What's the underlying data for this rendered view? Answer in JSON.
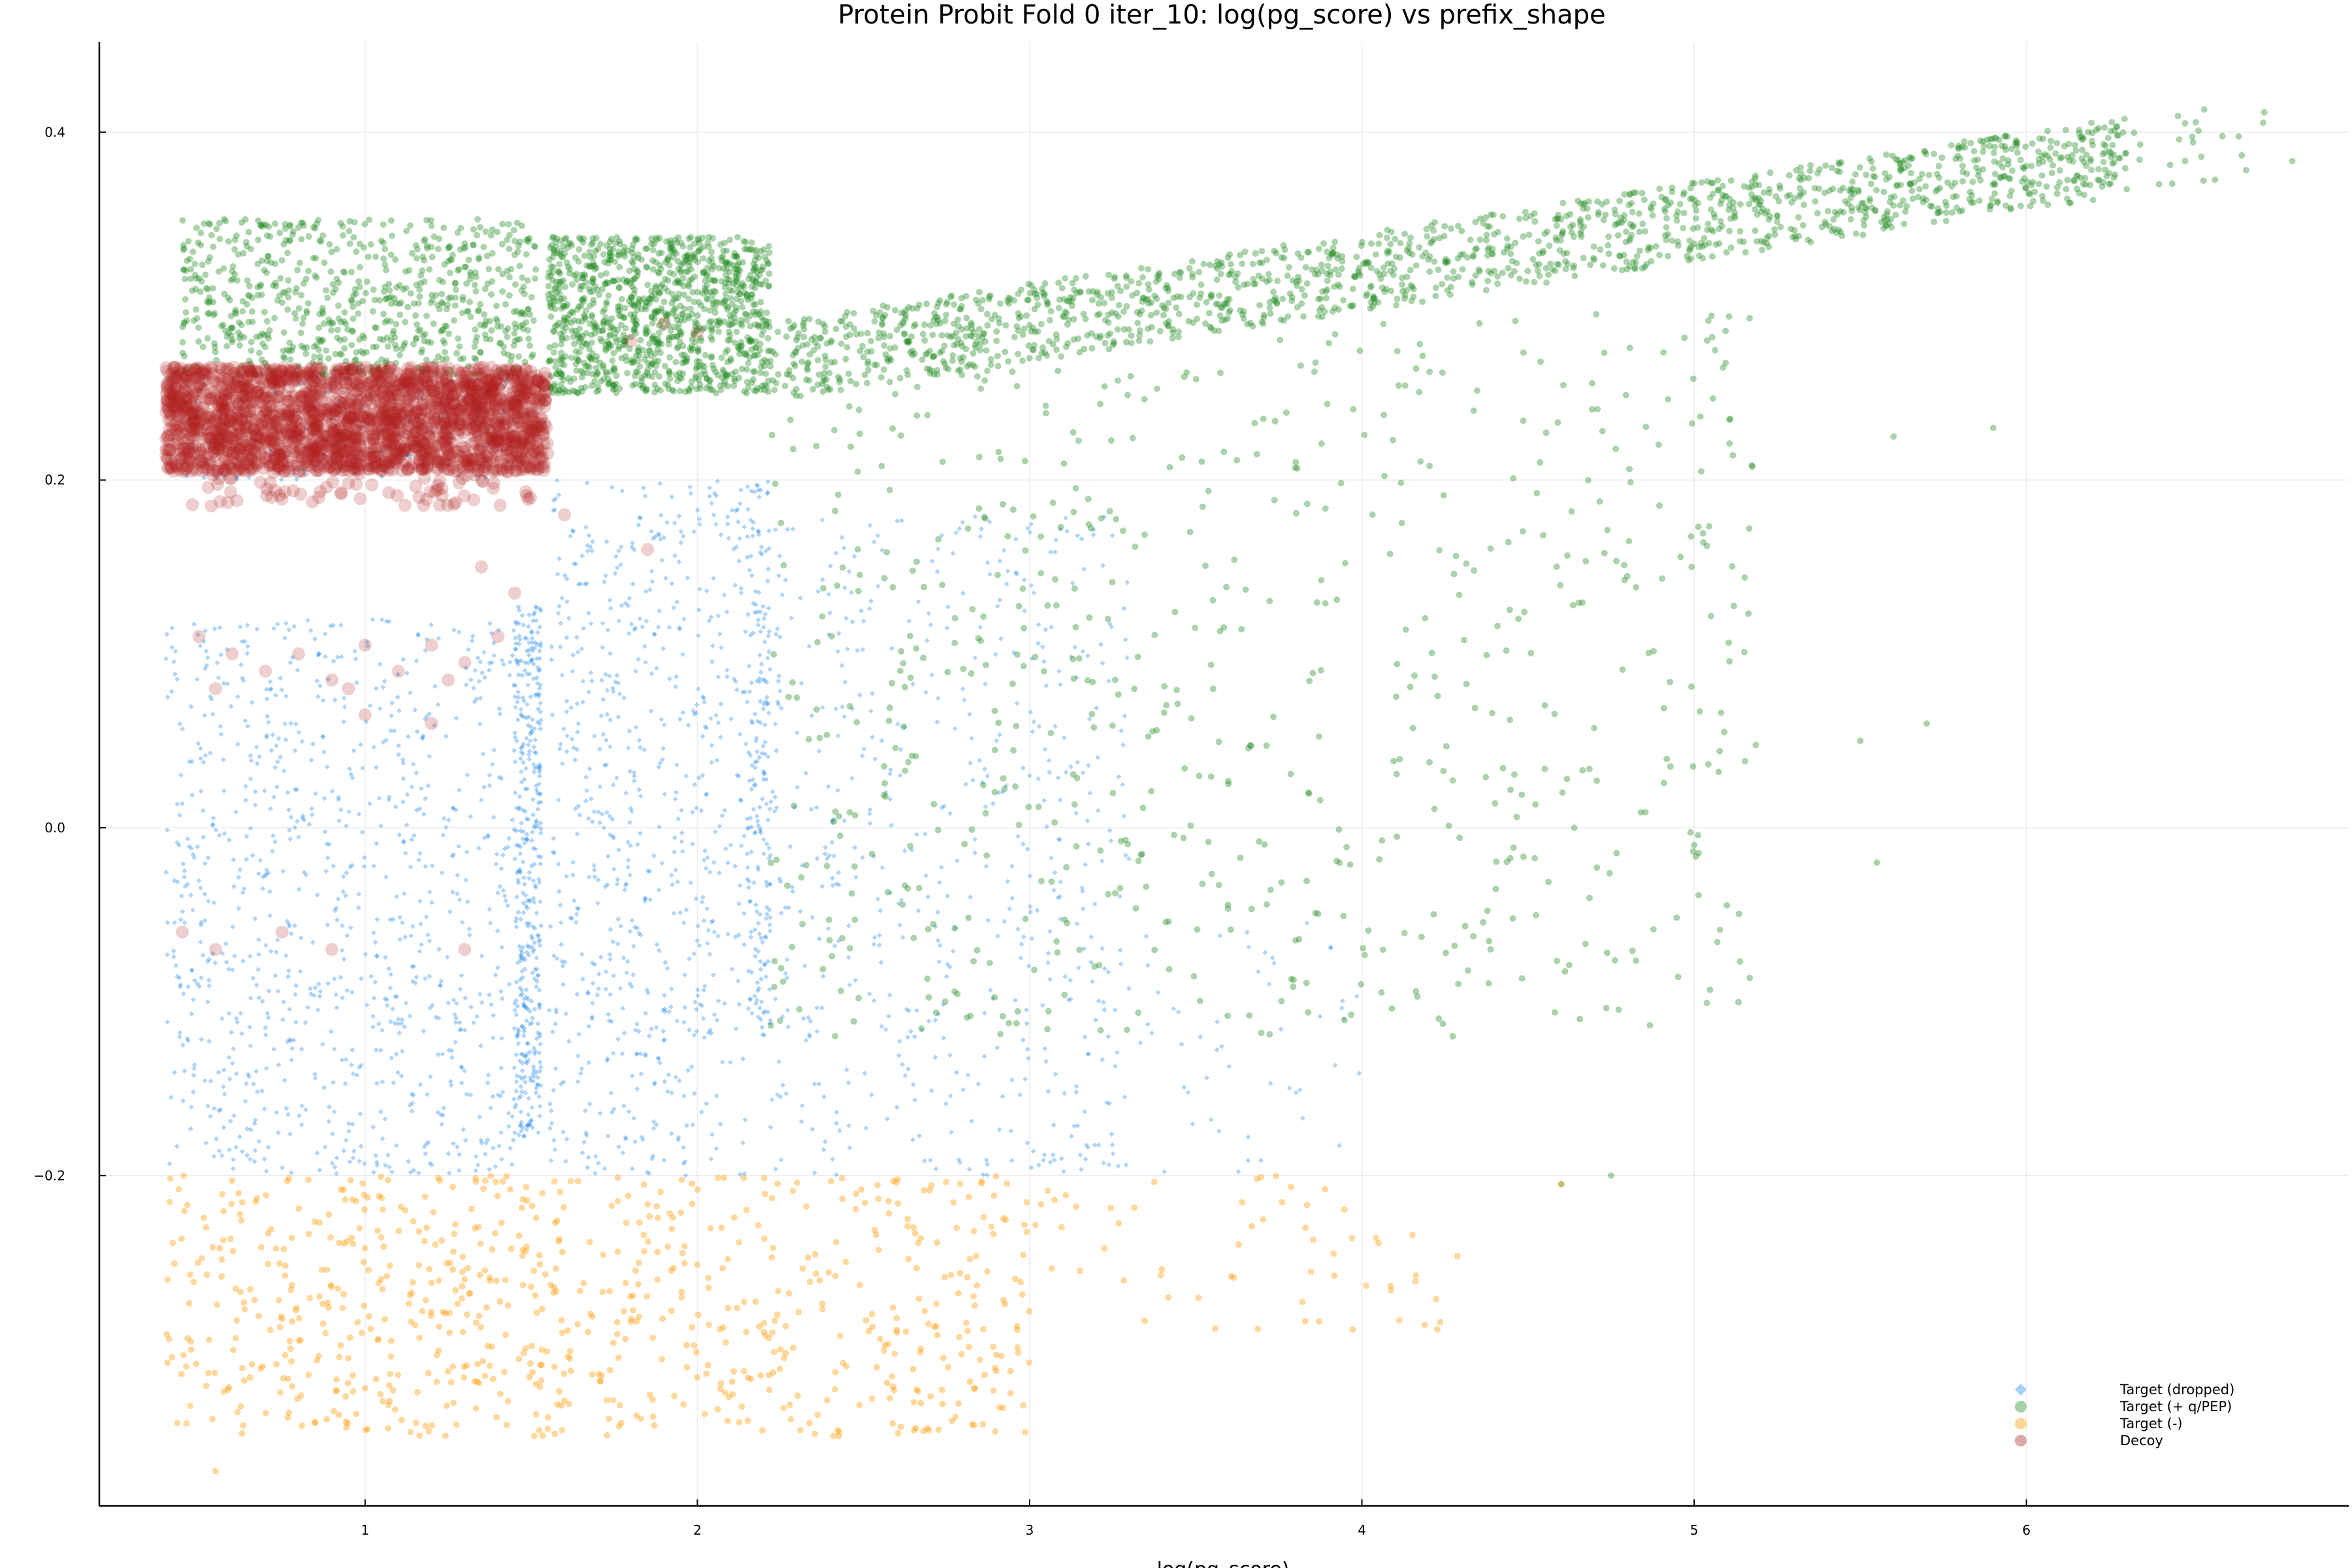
{
  "chart_data": {
    "type": "scatter",
    "title": "Protein Probit Fold 0 iter_10: log(pg_score) vs prefix_shape",
    "xlabel": "log(pg_score)",
    "ylabel": "",
    "xlim": [
      0.2,
      6.97
    ],
    "ylim": [
      -0.39,
      0.452
    ],
    "grid": true,
    "legend_position": "bottom-right",
    "x_ticks": [
      {
        "value": 1,
        "label": "1"
      },
      {
        "value": 2,
        "label": "2"
      },
      {
        "value": 3,
        "label": "3"
      },
      {
        "value": 4,
        "label": "4"
      },
      {
        "value": 5,
        "label": "5"
      },
      {
        "value": 6,
        "label": "6"
      }
    ],
    "y_ticks": [
      {
        "value": -0.2,
        "label": "−0.2"
      },
      {
        "value": 0.0,
        "label": "0.0"
      },
      {
        "value": 0.2,
        "label": "0.2"
      },
      {
        "value": 0.4,
        "label": "0.4"
      }
    ],
    "series": [
      {
        "name": "Target (dropped)",
        "color": "#1e88e5",
        "marker": "diamond",
        "clusters": [
          {
            "x": [
              0.4,
              1.45
            ],
            "y": [
              -0.2,
              0.12
            ],
            "n": 900
          },
          {
            "x": [
              1.45,
              1.53
            ],
            "y": [
              -0.18,
              0.13
            ],
            "n": 400
          },
          {
            "x": [
              1.55,
              2.15
            ],
            "y": [
              -0.2,
              0.2
            ],
            "n": 650
          },
          {
            "x": [
              2.15,
              2.22
            ],
            "y": [
              -0.12,
              0.2
            ],
            "n": 200
          },
          {
            "x": [
              2.22,
              3.3
            ],
            "y": [
              -0.2,
              0.18
            ],
            "n": 550
          },
          {
            "x": [
              3.3,
              4.0
            ],
            "y": [
              -0.2,
              -0.05
            ],
            "n": 50
          },
          {
            "x": [
              0.4,
              1.52
            ],
            "y": [
              0.2,
              0.26
            ],
            "n": 150
          }
        ],
        "points": [
          [
            2.1,
            -0.01
          ],
          [
            2.05,
            -0.02
          ],
          [
            2.15,
            -0.015
          ],
          [
            2.9,
            0.05
          ],
          [
            3.0,
            0.03
          ]
        ]
      },
      {
        "name": "Target (+ q/PEP)",
        "color": "#228b22",
        "marker": "circle",
        "clusters": [
          {
            "x": [
              0.45,
              1.52
            ],
            "y": [
              0.26,
              0.35
            ],
            "n": 700
          },
          {
            "x": [
              1.55,
              2.22
            ],
            "y": [
              0.25,
              0.34
            ],
            "n": 1100
          },
          {
            "x": [
              2.22,
              6.3
            ],
            "y": [
              0.27,
              0.41
            ],
            "n": 1500
          },
          {
            "x": [
              2.2,
              5.2
            ],
            "y": [
              -0.12,
              0.3
            ],
            "n": 700
          },
          {
            "x": [
              5.3,
              6.8
            ],
            "y": [
              0.38,
              0.43
            ],
            "n": 80
          }
        ],
        "points": [
          [
            5.6,
            0.225
          ],
          [
            5.9,
            0.23
          ],
          [
            5.7,
            0.06
          ],
          [
            5.5,
            0.05
          ],
          [
            5.55,
            -0.02
          ],
          [
            4.75,
            -0.2
          ],
          [
            4.6,
            -0.205
          ],
          [
            5.0,
            -0.01
          ]
        ]
      },
      {
        "name": "Target (-)",
        "color": "#ff9800",
        "marker": "circle",
        "clusters": [
          {
            "x": [
              0.4,
              1.55
            ],
            "y": [
              -0.35,
              -0.2
            ],
            "n": 380
          },
          {
            "x": [
              1.55,
              3.0
            ],
            "y": [
              -0.35,
              -0.2
            ],
            "n": 380
          },
          {
            "x": [
              3.0,
              4.3
            ],
            "y": [
              -0.29,
              -0.2
            ],
            "n": 60
          }
        ],
        "points": [
          [
            0.55,
            -0.37
          ],
          [
            2.2,
            -0.29
          ],
          [
            2.25,
            -0.3
          ],
          [
            2.2,
            -0.285
          ],
          [
            4.6,
            -0.205
          ]
        ]
      },
      {
        "name": "Decoy",
        "color": "#b22222",
        "marker": "circle",
        "clusters": [
          {
            "x": [
              0.4,
              1.55
            ],
            "y": [
              0.205,
              0.265
            ],
            "n": 2200
          },
          {
            "x": [
              0.45,
              1.5
            ],
            "y": [
              0.185,
              0.21
            ],
            "n": 90
          }
        ],
        "points": [
          [
            0.5,
            0.11
          ],
          [
            0.6,
            0.1
          ],
          [
            0.7,
            0.09
          ],
          [
            0.8,
            0.1
          ],
          [
            0.9,
            0.085
          ],
          [
            1.0,
            0.105
          ],
          [
            1.1,
            0.09
          ],
          [
            1.2,
            0.105
          ],
          [
            1.3,
            0.095
          ],
          [
            1.4,
            0.11
          ],
          [
            0.55,
            0.08
          ],
          [
            0.95,
            0.08
          ],
          [
            1.25,
            0.085
          ],
          [
            1.0,
            0.065
          ],
          [
            1.2,
            0.06
          ],
          [
            1.35,
            0.15
          ],
          [
            0.45,
            -0.06
          ],
          [
            0.55,
            -0.07
          ],
          [
            0.75,
            -0.06
          ],
          [
            0.9,
            -0.07
          ],
          [
            1.3,
            -0.07
          ],
          [
            1.45,
            0.135
          ],
          [
            1.6,
            0.18
          ],
          [
            1.85,
            0.16
          ],
          [
            1.9,
            0.29
          ],
          [
            2.0,
            0.285
          ],
          [
            1.8,
            0.28
          ]
        ]
      }
    ]
  }
}
